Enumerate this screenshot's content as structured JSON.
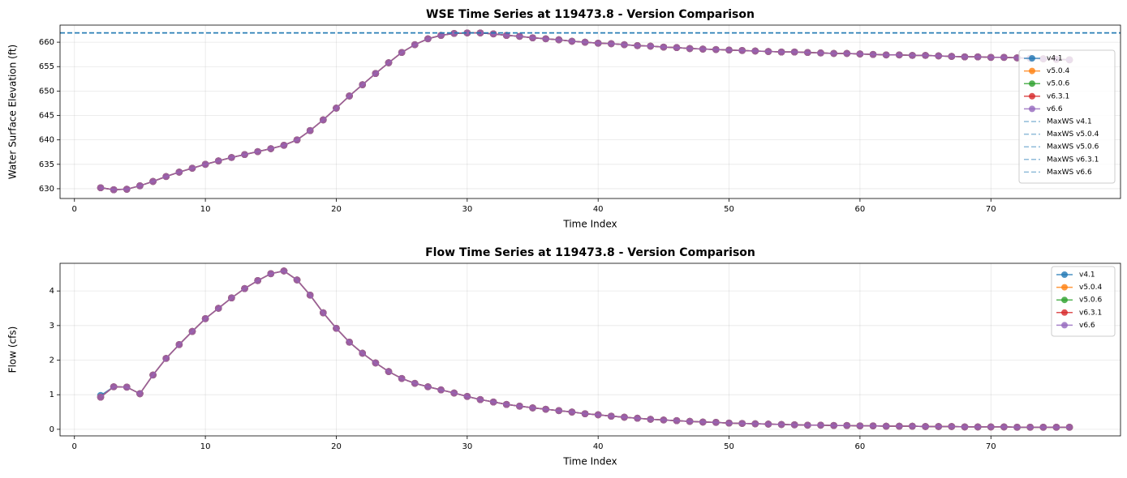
{
  "chart_data": [
    {
      "type": "line",
      "title": "WSE Time Series at 119473.8 - Version Comparison",
      "x_label": "Time Index",
      "y_label": "Water Surface Elevation (ft)",
      "x": [
        2,
        3,
        4,
        5,
        6,
        7,
        8,
        9,
        10,
        11,
        12,
        13,
        14,
        15,
        16,
        17,
        18,
        19,
        20,
        21,
        22,
        23,
        24,
        25,
        26,
        27,
        28,
        29,
        30,
        31,
        32,
        33,
        34,
        35,
        36,
        37,
        38,
        39,
        40,
        41,
        42,
        43,
        44,
        45,
        46,
        47,
        48,
        49,
        50,
        51,
        52,
        53,
        54,
        55,
        56,
        57,
        58,
        59,
        60,
        61,
        62,
        63,
        64,
        65,
        66,
        67,
        68,
        69,
        70,
        71,
        72,
        73,
        74,
        75,
        76
      ],
      "series": [
        {
          "name": "v4.1",
          "color": "#1f77b4",
          "values": [
            630.2,
            629.8,
            629.9,
            630.6,
            631.5,
            632.5,
            633.4,
            634.2,
            635.0,
            635.7,
            636.4,
            637.0,
            637.6,
            638.2,
            638.9,
            640.0,
            641.9,
            644.1,
            646.5,
            649.0,
            651.3,
            653.6,
            655.8,
            657.9,
            659.5,
            660.7,
            661.4,
            661.8,
            661.9,
            661.9,
            661.7,
            661.4,
            661.2,
            660.9,
            660.7,
            660.5,
            660.2,
            660.0,
            659.8,
            659.7,
            659.5,
            659.3,
            659.2,
            659.0,
            658.9,
            658.7,
            658.6,
            658.5,
            658.4,
            658.3,
            658.2,
            658.1,
            658.0,
            658.0,
            657.9,
            657.8,
            657.7,
            657.7,
            657.6,
            657.5,
            657.4,
            657.4,
            657.3,
            657.3,
            657.2,
            657.1,
            657.0,
            657.0,
            656.9,
            656.9,
            656.8,
            656.7,
            656.6,
            656.5,
            656.4
          ]
        },
        {
          "name": "v5.0.4",
          "color": "#ff7f0e",
          "values": [
            630.2,
            629.8,
            629.9,
            630.6,
            631.5,
            632.5,
            633.4,
            634.2,
            635.0,
            635.7,
            636.4,
            637.0,
            637.6,
            638.2,
            638.9,
            640.0,
            641.9,
            644.1,
            646.5,
            649.0,
            651.3,
            653.6,
            655.8,
            657.9,
            659.5,
            660.7,
            661.4,
            661.8,
            661.9,
            661.9,
            661.7,
            661.4,
            661.2,
            660.9,
            660.7,
            660.5,
            660.2,
            660.0,
            659.8,
            659.7,
            659.5,
            659.3,
            659.2,
            659.0,
            658.9,
            658.7,
            658.6,
            658.5,
            658.4,
            658.3,
            658.2,
            658.1,
            658.0,
            658.0,
            657.9,
            657.8,
            657.7,
            657.7,
            657.6,
            657.5,
            657.4,
            657.4,
            657.3,
            657.3,
            657.2,
            657.1,
            657.0,
            657.0,
            656.9,
            656.9,
            656.8,
            656.7,
            656.6,
            656.5,
            656.4
          ]
        },
        {
          "name": "v5.0.6",
          "color": "#2ca02c",
          "values": [
            630.2,
            629.8,
            629.9,
            630.6,
            631.5,
            632.5,
            633.4,
            634.2,
            635.0,
            635.7,
            636.4,
            637.0,
            637.6,
            638.2,
            638.9,
            640.0,
            641.9,
            644.1,
            646.5,
            649.0,
            651.3,
            653.6,
            655.8,
            657.9,
            659.5,
            660.7,
            661.4,
            661.8,
            661.9,
            661.9,
            661.7,
            661.4,
            661.2,
            660.9,
            660.7,
            660.5,
            660.2,
            660.0,
            659.8,
            659.7,
            659.5,
            659.3,
            659.2,
            659.0,
            658.9,
            658.7,
            658.6,
            658.5,
            658.4,
            658.3,
            658.2,
            658.1,
            658.0,
            658.0,
            657.9,
            657.8,
            657.7,
            657.7,
            657.6,
            657.5,
            657.4,
            657.4,
            657.3,
            657.3,
            657.2,
            657.1,
            657.0,
            657.0,
            656.9,
            656.9,
            656.8,
            656.7,
            656.6,
            656.5,
            656.4
          ]
        },
        {
          "name": "v6.3.1",
          "color": "#d62728",
          "values": [
            630.2,
            629.8,
            629.9,
            630.6,
            631.5,
            632.5,
            633.4,
            634.2,
            635.0,
            635.7,
            636.4,
            637.0,
            637.6,
            638.2,
            638.9,
            640.0,
            641.9,
            644.1,
            646.5,
            649.0,
            651.3,
            653.6,
            655.8,
            657.9,
            659.5,
            660.7,
            661.4,
            661.8,
            661.9,
            661.9,
            661.7,
            661.4,
            661.2,
            660.9,
            660.7,
            660.5,
            660.2,
            660.0,
            659.8,
            659.7,
            659.5,
            659.3,
            659.2,
            659.0,
            658.9,
            658.7,
            658.6,
            658.5,
            658.4,
            658.3,
            658.2,
            658.1,
            658.0,
            658.0,
            657.9,
            657.8,
            657.7,
            657.7,
            657.6,
            657.5,
            657.4,
            657.4,
            657.3,
            657.3,
            657.2,
            657.1,
            657.0,
            657.0,
            656.9,
            656.9,
            656.8,
            656.7,
            656.6,
            656.5,
            656.4
          ]
        },
        {
          "name": "v6.6",
          "color": "#9467bd",
          "values": [
            630.2,
            629.8,
            629.9,
            630.6,
            631.5,
            632.5,
            633.4,
            634.2,
            635.0,
            635.7,
            636.4,
            637.0,
            637.6,
            638.2,
            638.9,
            640.0,
            641.9,
            644.1,
            646.5,
            649.0,
            651.3,
            653.6,
            655.8,
            657.9,
            659.5,
            660.7,
            661.4,
            661.8,
            661.9,
            661.9,
            661.7,
            661.4,
            661.2,
            660.9,
            660.7,
            660.5,
            660.2,
            660.0,
            659.8,
            659.7,
            659.5,
            659.3,
            659.2,
            659.0,
            658.9,
            658.7,
            658.6,
            658.5,
            658.4,
            658.3,
            658.2,
            658.1,
            658.0,
            658.0,
            657.9,
            657.8,
            657.7,
            657.7,
            657.6,
            657.5,
            657.4,
            657.4,
            657.3,
            657.3,
            657.2,
            657.1,
            657.0,
            657.0,
            656.9,
            656.9,
            656.8,
            656.7,
            656.6,
            656.5,
            656.4
          ]
        }
      ],
      "reference_lines": [
        {
          "name": "MaxWS v4.1",
          "value": 661.9,
          "color": "#1f77b4"
        },
        {
          "name": "MaxWS v5.0.4",
          "value": 661.9,
          "color": "#1f77b4"
        },
        {
          "name": "MaxWS v5.0.6",
          "value": 661.9,
          "color": "#1f77b4"
        },
        {
          "name": "MaxWS v6.3.1",
          "value": 661.9,
          "color": "#1f77b4"
        },
        {
          "name": "MaxWS v6.6",
          "value": 661.9,
          "color": "#1f77b4"
        }
      ],
      "xlim": [
        -1.1,
        79.9
      ],
      "ylim": [
        628.0,
        663.5
      ],
      "xticks": [
        0,
        10,
        20,
        30,
        40,
        50,
        60,
        70
      ],
      "yticks": [
        630,
        635,
        640,
        645,
        650,
        655,
        660
      ],
      "grid": true,
      "legend": "center right"
    },
    {
      "type": "line",
      "title": "Flow Time Series at 119473.8 - Version Comparison",
      "x_label": "Time Index",
      "y_label": "Flow (cfs)",
      "x": [
        2,
        3,
        4,
        5,
        6,
        7,
        8,
        9,
        10,
        11,
        12,
        13,
        14,
        15,
        16,
        17,
        18,
        19,
        20,
        21,
        22,
        23,
        24,
        25,
        26,
        27,
        28,
        29,
        30,
        31,
        32,
        33,
        34,
        35,
        36,
        37,
        38,
        39,
        40,
        41,
        42,
        43,
        44,
        45,
        46,
        47,
        48,
        49,
        50,
        51,
        52,
        53,
        54,
        55,
        56,
        57,
        58,
        59,
        60,
        61,
        62,
        63,
        64,
        65,
        66,
        67,
        68,
        69,
        70,
        71,
        72,
        73,
        74,
        75,
        76
      ],
      "series": [
        {
          "name": "v4.1",
          "color": "#1f77b4",
          "values": [
            0.98,
            1.23,
            1.22,
            1.03,
            1.57,
            2.05,
            2.45,
            2.83,
            3.2,
            3.5,
            3.8,
            4.07,
            4.3,
            4.5,
            4.58,
            4.32,
            3.88,
            3.37,
            2.92,
            2.52,
            2.2,
            1.92,
            1.67,
            1.47,
            1.33,
            1.23,
            1.14,
            1.05,
            0.95,
            0.86,
            0.79,
            0.72,
            0.67,
            0.62,
            0.58,
            0.54,
            0.5,
            0.45,
            0.42,
            0.38,
            0.35,
            0.32,
            0.29,
            0.27,
            0.25,
            0.23,
            0.21,
            0.2,
            0.18,
            0.17,
            0.16,
            0.15,
            0.14,
            0.13,
            0.12,
            0.12,
            0.11,
            0.11,
            0.1,
            0.1,
            0.09,
            0.09,
            0.09,
            0.08,
            0.08,
            0.08,
            0.07,
            0.07,
            0.07,
            0.07,
            0.06,
            0.06,
            0.06,
            0.06,
            0.06
          ]
        },
        {
          "name": "v5.0.4",
          "color": "#ff7f0e",
          "values": [
            0.93,
            1.23,
            1.22,
            1.03,
            1.57,
            2.05,
            2.45,
            2.83,
            3.2,
            3.5,
            3.8,
            4.07,
            4.3,
            4.5,
            4.58,
            4.32,
            3.88,
            3.37,
            2.92,
            2.52,
            2.2,
            1.92,
            1.67,
            1.47,
            1.33,
            1.23,
            1.14,
            1.05,
            0.95,
            0.86,
            0.79,
            0.72,
            0.67,
            0.62,
            0.58,
            0.54,
            0.5,
            0.45,
            0.42,
            0.38,
            0.35,
            0.32,
            0.29,
            0.27,
            0.25,
            0.23,
            0.21,
            0.2,
            0.18,
            0.17,
            0.16,
            0.15,
            0.14,
            0.13,
            0.12,
            0.12,
            0.11,
            0.11,
            0.1,
            0.1,
            0.09,
            0.09,
            0.09,
            0.08,
            0.08,
            0.08,
            0.07,
            0.07,
            0.07,
            0.07,
            0.06,
            0.06,
            0.06,
            0.06,
            0.06
          ]
        },
        {
          "name": "v5.0.6",
          "color": "#2ca02c",
          "values": [
            0.93,
            1.23,
            1.22,
            1.03,
            1.57,
            2.05,
            2.45,
            2.83,
            3.2,
            3.5,
            3.8,
            4.07,
            4.3,
            4.5,
            4.58,
            4.32,
            3.88,
            3.37,
            2.92,
            2.52,
            2.2,
            1.92,
            1.67,
            1.47,
            1.33,
            1.23,
            1.14,
            1.05,
            0.95,
            0.86,
            0.79,
            0.72,
            0.67,
            0.62,
            0.58,
            0.54,
            0.5,
            0.45,
            0.42,
            0.38,
            0.35,
            0.32,
            0.29,
            0.27,
            0.25,
            0.23,
            0.21,
            0.2,
            0.18,
            0.17,
            0.16,
            0.15,
            0.14,
            0.13,
            0.12,
            0.12,
            0.11,
            0.11,
            0.1,
            0.1,
            0.09,
            0.09,
            0.09,
            0.08,
            0.08,
            0.08,
            0.07,
            0.07,
            0.07,
            0.07,
            0.06,
            0.06,
            0.06,
            0.06,
            0.06
          ]
        },
        {
          "name": "v6.3.1",
          "color": "#d62728",
          "values": [
            0.93,
            1.23,
            1.22,
            1.03,
            1.57,
            2.05,
            2.45,
            2.83,
            3.2,
            3.5,
            3.8,
            4.07,
            4.3,
            4.5,
            4.58,
            4.32,
            3.88,
            3.37,
            2.92,
            2.52,
            2.2,
            1.92,
            1.67,
            1.47,
            1.33,
            1.23,
            1.14,
            1.05,
            0.95,
            0.86,
            0.79,
            0.72,
            0.67,
            0.62,
            0.58,
            0.54,
            0.5,
            0.45,
            0.42,
            0.38,
            0.35,
            0.32,
            0.29,
            0.27,
            0.25,
            0.23,
            0.21,
            0.2,
            0.18,
            0.17,
            0.16,
            0.15,
            0.14,
            0.13,
            0.12,
            0.12,
            0.11,
            0.11,
            0.1,
            0.1,
            0.09,
            0.09,
            0.09,
            0.08,
            0.08,
            0.08,
            0.07,
            0.07,
            0.07,
            0.07,
            0.06,
            0.06,
            0.06,
            0.06,
            0.06
          ]
        },
        {
          "name": "v6.6",
          "color": "#9467bd",
          "values": [
            0.93,
            1.23,
            1.22,
            1.03,
            1.57,
            2.05,
            2.45,
            2.83,
            3.2,
            3.5,
            3.8,
            4.07,
            4.3,
            4.5,
            4.58,
            4.32,
            3.88,
            3.37,
            2.92,
            2.52,
            2.2,
            1.92,
            1.67,
            1.47,
            1.33,
            1.23,
            1.14,
            1.05,
            0.95,
            0.86,
            0.79,
            0.72,
            0.67,
            0.62,
            0.58,
            0.54,
            0.5,
            0.45,
            0.42,
            0.38,
            0.35,
            0.32,
            0.29,
            0.27,
            0.25,
            0.23,
            0.21,
            0.2,
            0.18,
            0.17,
            0.16,
            0.15,
            0.14,
            0.13,
            0.12,
            0.12,
            0.11,
            0.11,
            0.1,
            0.1,
            0.09,
            0.09,
            0.09,
            0.08,
            0.08,
            0.08,
            0.07,
            0.07,
            0.07,
            0.07,
            0.06,
            0.06,
            0.06,
            0.06,
            0.06
          ]
        }
      ],
      "xlim": [
        -1.1,
        79.9
      ],
      "ylim": [
        -0.19,
        4.8
      ],
      "xticks": [
        0,
        10,
        20,
        30,
        40,
        50,
        60,
        70
      ],
      "yticks": [
        0,
        1,
        2,
        3,
        4
      ],
      "grid": true,
      "legend": "upper right"
    }
  ]
}
